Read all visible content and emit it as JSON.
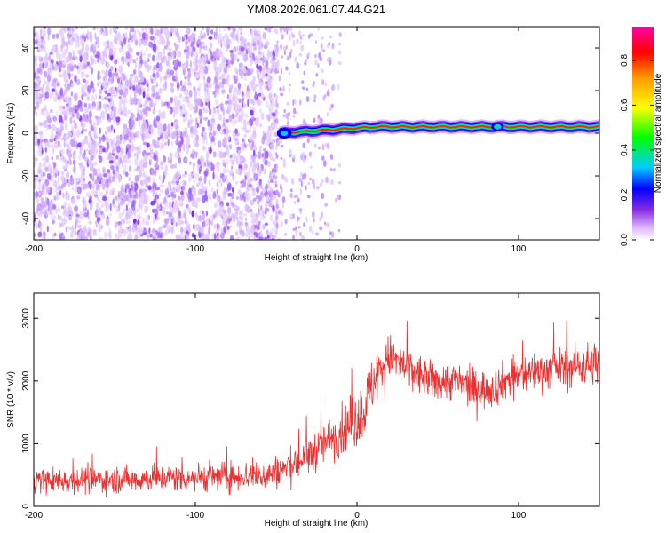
{
  "title": "YM08.2026.061.07.44.G21",
  "chart_data": [
    {
      "type": "heatmap",
      "xlabel": "Height of straight line (km)",
      "ylabel": "Frequency (Hz)",
      "xlim": [
        -200,
        150
      ],
      "ylim": [
        -50,
        50
      ],
      "xticks": [
        -200,
        -100,
        0,
        100
      ],
      "yticks": [
        -40,
        -20,
        0,
        20,
        40
      ],
      "xtick_labels": [
        "-200",
        "-100",
        "0",
        "100"
      ],
      "ytick_labels": [
        "-40",
        "-20",
        "0",
        "20",
        "40"
      ],
      "grid": false,
      "colorbar": {
        "label": "Normalized spectral amplitude",
        "range": [
          0,
          0.95
        ],
        "ticks": [
          0.0,
          0.2,
          0.4,
          0.6,
          0.8
        ],
        "tick_labels": [
          "0.0",
          "0.2",
          "0.4",
          "0.6",
          "0.8"
        ],
        "colormap": "rainbow (white-violet-blue-cyan-green-yellow-red-magenta)"
      },
      "features": {
        "scatter_region_km": [
          -200,
          -50
        ],
        "sparse_region_km": [
          -50,
          -10
        ],
        "line_start_km": -48,
        "line_start_freq_hz": 0,
        "line_end_km": 150,
        "line_end_freq_hz": 3
      }
    },
    {
      "type": "line",
      "xlabel": "Height of straight line (km)",
      "ylabel": "SNR (10 * v/v)",
      "xlim": [
        -200,
        150
      ],
      "ylim": [
        0,
        3400
      ],
      "xticks": [
        -200,
        -100,
        0,
        100
      ],
      "yticks": [
        0,
        1000,
        2000,
        3000
      ],
      "xtick_labels": [
        "-200",
        "-100",
        "0",
        "100"
      ],
      "ytick_labels": [
        "0",
        "1000",
        "2000",
        "3000"
      ],
      "grid": false,
      "series": [
        {
          "name": "SNR",
          "color": "#ee3030",
          "x": [
            -200,
            -175,
            -150,
            -125,
            -100,
            -75,
            -55,
            -45,
            -30,
            -15,
            -5,
            0,
            5,
            12,
            20,
            30,
            45,
            60,
            75,
            85,
            95,
            110,
            125,
            140,
            150
          ],
          "mean": [
            400,
            420,
            430,
            440,
            460,
            480,
            500,
            600,
            800,
            1100,
            1300,
            1400,
            1600,
            2100,
            2400,
            2200,
            2000,
            2000,
            1850,
            1900,
            2050,
            2150,
            2200,
            2250,
            2300
          ],
          "spread": [
            300,
            300,
            300,
            300,
            320,
            330,
            350,
            400,
            450,
            500,
            600,
            700,
            700,
            600,
            500,
            500,
            450,
            450,
            450,
            450,
            450,
            450,
            450,
            500,
            500
          ]
        }
      ]
    }
  ]
}
